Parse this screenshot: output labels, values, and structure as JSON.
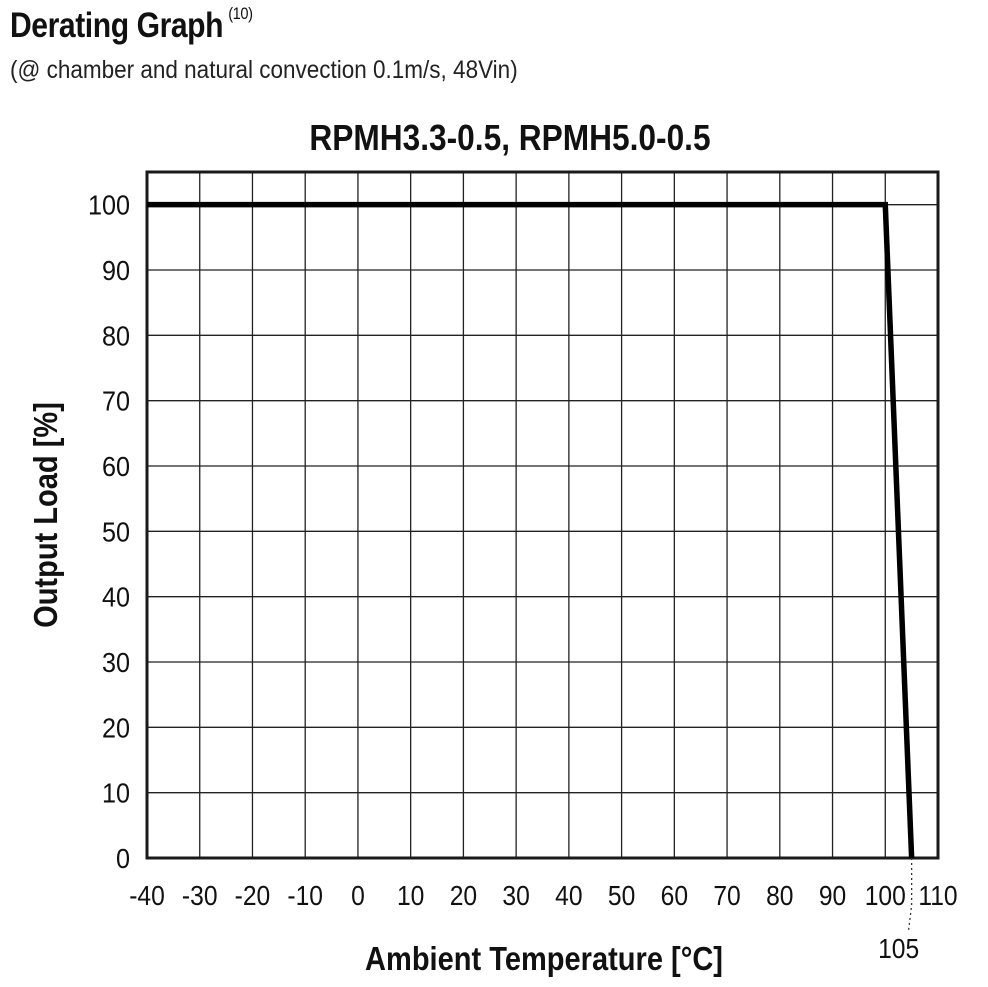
{
  "header": {
    "title": "Derating Graph",
    "footnote": "(10)",
    "subtitle": "(@ chamber and natural convection 0.1m/s, 48Vin)"
  },
  "chart_data": {
    "type": "line",
    "title": "RPMH3.3-0.5, RPMH5.0-0.5",
    "xlabel": "Ambient Temperature [°C]",
    "ylabel": "Output Load [%]",
    "xlim": [
      -40,
      110
    ],
    "ylim": [
      0,
      105
    ],
    "x_ticks": [
      -40,
      -30,
      -20,
      -10,
      0,
      10,
      20,
      30,
      40,
      50,
      60,
      70,
      80,
      90,
      100,
      110
    ],
    "y_ticks": [
      0,
      10,
      20,
      30,
      40,
      50,
      60,
      70,
      80,
      90,
      100
    ],
    "grid": true,
    "series": [
      {
        "x": [
          -40,
          100,
          105
        ],
        "y": [
          100,
          100,
          0
        ]
      }
    ],
    "annotations": [
      {
        "text": "105",
        "x": 105
      }
    ],
    "colors": {
      "line": "#000000",
      "grid": "#222222",
      "frame": "#1a1a1a"
    }
  }
}
